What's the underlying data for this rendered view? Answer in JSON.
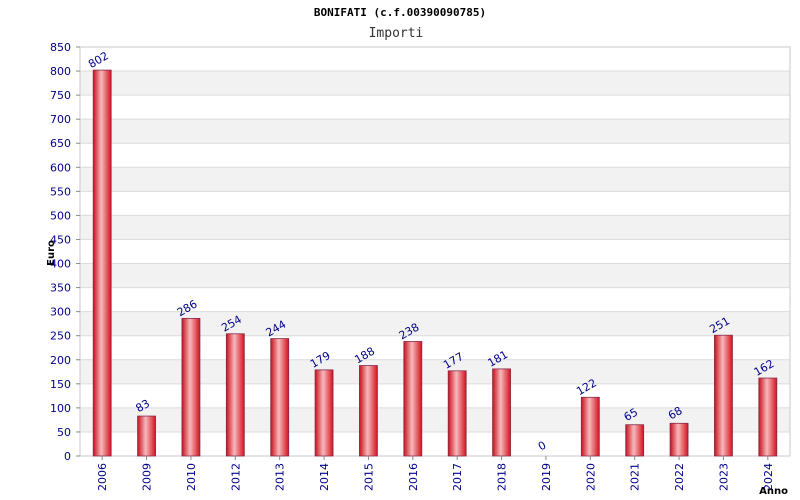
{
  "chart_data": {
    "type": "bar",
    "title": "BONIFATI (c.f.00390090785)",
    "subtitle": "Importi",
    "ylabel": "Euro",
    "xlabel": "Anno",
    "ylim": [
      0,
      850
    ],
    "ytick_step": 50,
    "grid": true,
    "categories": [
      "2006",
      "2009",
      "2010",
      "2012",
      "2013",
      "2014",
      "2015",
      "2016",
      "2017",
      "2018",
      "2019",
      "2020",
      "2021",
      "2022",
      "2023",
      "2024"
    ],
    "values": [
      802,
      83,
      286,
      254,
      244,
      179,
      188,
      238,
      177,
      181,
      0,
      122,
      65,
      68,
      251,
      162
    ],
    "bar_color": "#e8202a",
    "data_label_color": "#00008b"
  }
}
